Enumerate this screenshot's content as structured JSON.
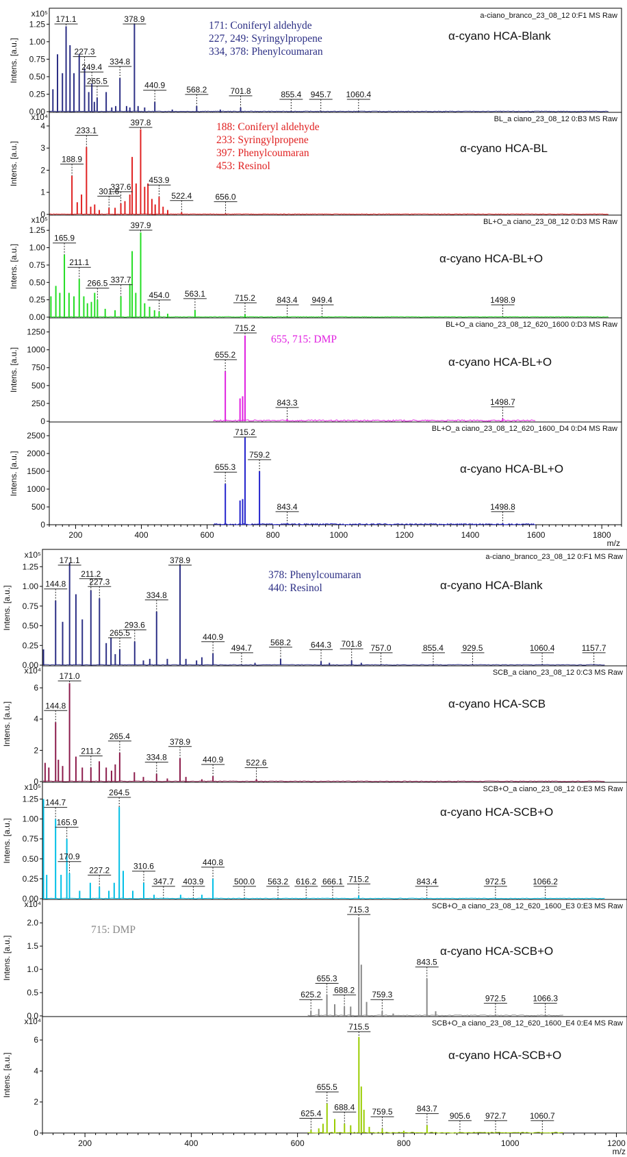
{
  "figure": {
    "x_axis_label": "m/z",
    "y_axis_label": "Intens. [a.u.]",
    "top_x_ticks": [
      "200",
      "400",
      "600",
      "800",
      "1000",
      "1200",
      "1400",
      "1600",
      "1800"
    ],
    "bottom_x_ticks": [
      "200",
      "400",
      "600",
      "800",
      "1000",
      "1200"
    ]
  },
  "chart_data": [
    {
      "type": "line",
      "panel": "top-1",
      "source": "a-ciano_branco_23_08_12 0:F1 MS Raw",
      "sample": "α-cyano HCA-Blank",
      "color": "#2b2e84",
      "y_exponent": "x10⁵",
      "y_scale": 100000,
      "ylim": [
        0,
        1.4
      ],
      "y_ticks": [
        "0.00",
        "0.25",
        "0.50",
        "0.75",
        "1.00",
        "1.25"
      ],
      "xlim": [
        120,
        1860
      ],
      "annotations": [
        "171: Coniferyl aldehyde",
        "227, 249: Syringylpropene",
        "334, 378: Phenylcoumaran"
      ],
      "peaks": [
        {
          "mz": "171.1",
          "y": 1.22
        },
        {
          "mz": "227.3",
          "y": 0.62
        },
        {
          "mz": "249.4",
          "y": 0.4
        },
        {
          "mz": "265.5",
          "y": 0.2
        },
        {
          "mz": "334.8",
          "y": 0.48
        },
        {
          "mz": "378.9",
          "y": 1.26
        },
        {
          "mz": "440.9",
          "y": 0.14
        },
        {
          "mz": "568.2",
          "y": 0.08
        },
        {
          "mz": "701.8",
          "y": 0.06
        },
        {
          "mz": "855.4",
          "y": 0.01
        },
        {
          "mz": "945.7",
          "y": 0.01
        },
        {
          "mz": "1060.4",
          "y": 0.01
        }
      ],
      "minor": [
        [
          131,
          0.32
        ],
        [
          145,
          0.82
        ],
        [
          160,
          0.55
        ],
        [
          183,
          0.95
        ],
        [
          195,
          0.55
        ],
        [
          211,
          0.82
        ],
        [
          240,
          0.28
        ],
        [
          257,
          0.14
        ],
        [
          293,
          0.28
        ],
        [
          310,
          0.06
        ],
        [
          322,
          0.08
        ],
        [
          355,
          0.08
        ],
        [
          365,
          0.06
        ],
        [
          390,
          0.08
        ],
        [
          410,
          0.06
        ],
        [
          494,
          0.03
        ],
        [
          640,
          0.03
        ]
      ]
    },
    {
      "type": "line",
      "panel": "top-2",
      "source": "BL_a ciano_23_08_12 0:B3 MS Raw",
      "sample": "α-cyano HCA-BL",
      "color": "#e02020",
      "y_exponent": "x10⁴",
      "y_scale": 10000,
      "ylim": [
        0,
        4.4
      ],
      "y_ticks": [
        "0",
        "1",
        "2",
        "3",
        "4"
      ],
      "xlim": [
        120,
        1860
      ],
      "annotations": [
        "188: Coniferyl aldehyde",
        "233: Syringylpropene",
        "397: Phenylcoumaran",
        "453: Resinol"
      ],
      "peaks": [
        {
          "mz": "188.9",
          "y": 1.75
        },
        {
          "mz": "233.1",
          "y": 3.05
        },
        {
          "mz": "301.6",
          "y": 0.3
        },
        {
          "mz": "337.6",
          "y": 0.5
        },
        {
          "mz": "397.8",
          "y": 3.85
        },
        {
          "mz": "453.9",
          "y": 0.8
        },
        {
          "mz": "522.4",
          "y": 0.1
        },
        {
          "mz": "656.0",
          "y": 0.05
        }
      ],
      "minor": [
        [
          205,
          0.55
        ],
        [
          218,
          0.9
        ],
        [
          246,
          0.35
        ],
        [
          258,
          0.45
        ],
        [
          272,
          0.2
        ],
        [
          320,
          0.3
        ],
        [
          350,
          0.6
        ],
        [
          365,
          0.9
        ],
        [
          372,
          2.6
        ],
        [
          384,
          1.4
        ],
        [
          410,
          1.25
        ],
        [
          420,
          1.4
        ],
        [
          432,
          0.7
        ],
        [
          442,
          0.45
        ],
        [
          466,
          0.35
        ],
        [
          480,
          0.2
        ]
      ]
    },
    {
      "type": "line",
      "panel": "top-3",
      "source": "BL+O_a ciano_23_08_12 0:D3 MS Raw",
      "sample": "α-cyano HCA-BL+O",
      "color": "#22dd22",
      "y_exponent": "x10⁵",
      "y_scale": 100000,
      "ylim": [
        0,
        1.4
      ],
      "y_ticks": [
        "0.00",
        "0.25",
        "0.50",
        "0.75",
        "1.00",
        "1.25"
      ],
      "xlim": [
        120,
        1860
      ],
      "annotations": [],
      "peaks": [
        {
          "mz": "165.9",
          "y": 0.9
        },
        {
          "mz": "211.1",
          "y": 0.55
        },
        {
          "mz": "266.5",
          "y": 0.25
        },
        {
          "mz": "337.7",
          "y": 0.3
        },
        {
          "mz": "397.9",
          "y": 1.22
        },
        {
          "mz": "454.0",
          "y": 0.08
        },
        {
          "mz": "563.1",
          "y": 0.1
        },
        {
          "mz": "715.2",
          "y": 0.04
        },
        {
          "mz": "843.4",
          "y": 0.01
        },
        {
          "mz": "949.4",
          "y": 0.01
        },
        {
          "mz": "1498.9",
          "y": 0.01
        }
      ],
      "minor": [
        [
          125,
          0.3
        ],
        [
          140,
          0.45
        ],
        [
          152,
          0.35
        ],
        [
          180,
          0.35
        ],
        [
          195,
          0.3
        ],
        [
          225,
          0.3
        ],
        [
          236,
          0.2
        ],
        [
          248,
          0.22
        ],
        [
          258,
          0.35
        ],
        [
          290,
          0.12
        ],
        [
          320,
          0.1
        ],
        [
          365,
          0.48
        ],
        [
          372,
          0.95
        ],
        [
          383,
          0.35
        ],
        [
          410,
          0.2
        ],
        [
          425,
          0.15
        ],
        [
          440,
          0.1
        ],
        [
          480,
          0.05
        ]
      ]
    },
    {
      "type": "line",
      "panel": "top-4",
      "source": "BL+O_a ciano_23_08_12_620_1600 0:D3 MS Raw",
      "sample": "α-cyano HCA-BL+O",
      "color": "#e020e0",
      "y_exponent": "",
      "y_scale": 1,
      "ylim": [
        0,
        1380
      ],
      "y_ticks": [
        "0",
        "250",
        "500",
        "750",
        "1000",
        "1250"
      ],
      "xlim": [
        120,
        1860
      ],
      "annotations": [
        "655, 715:  DMP"
      ],
      "peaks": [
        {
          "mz": "655.2",
          "y": 700
        },
        {
          "mz": "715.2",
          "y": 1200
        },
        {
          "mz": "843.3",
          "y": 30
        },
        {
          "mz": "1498.7",
          "y": 40
        }
      ],
      "minor": [
        [
          700,
          320
        ],
        [
          708,
          350
        ]
      ],
      "range": [
        620,
        1600
      ],
      "noise": 20
    },
    {
      "type": "line",
      "panel": "top-5",
      "source": "BL+O_a ciano_23_08_12_620_1600_D4 0:D4 MS Raw",
      "sample": "α-cyano HCA-BL+O",
      "color": "#2222cc",
      "y_exponent": "",
      "y_scale": 1,
      "ylim": [
        0,
        2750
      ],
      "y_ticks": [
        "0",
        "500",
        "1000",
        "1500",
        "2000",
        "2500"
      ],
      "xlim": [
        120,
        1860
      ],
      "annotations": [],
      "peaks": [
        {
          "mz": "655.3",
          "y": 1150
        },
        {
          "mz": "715.2",
          "y": 2450
        },
        {
          "mz": "759.2",
          "y": 1500
        },
        {
          "mz": "843.4",
          "y": 40
        },
        {
          "mz": "1498.8",
          "y": 40
        }
      ],
      "minor": [
        [
          700,
          680
        ],
        [
          708,
          720
        ]
      ],
      "range": [
        620,
        1600
      ],
      "noise": 30
    },
    {
      "type": "line",
      "panel": "bottom-1",
      "source": "a-ciano_branco_23_08_12 0:F1 MS Raw",
      "sample": "α-cyano HCA-Blank",
      "color": "#2b2e84",
      "y_exponent": "x10⁵",
      "y_scale": 100000,
      "ylim": [
        0,
        1.4
      ],
      "y_ticks": [
        "0.00",
        "0.25",
        "0.50",
        "0.75",
        "1.00",
        "1.25"
      ],
      "xlim": [
        120,
        1220
      ],
      "annotations": [
        "378: Phenylcoumaran",
        "440: Resinol"
      ],
      "peaks": [
        {
          "mz": "144.8",
          "y": 0.82
        },
        {
          "mz": "171.1",
          "y": 1.3
        },
        {
          "mz": "211.2",
          "y": 0.95
        },
        {
          "mz": "227.3",
          "y": 0.85
        },
        {
          "mz": "265.5",
          "y": 0.2
        },
        {
          "mz": "293.6",
          "y": 0.3
        },
        {
          "mz": "334.8",
          "y": 0.68
        },
        {
          "mz": "378.9",
          "y": 1.28
        },
        {
          "mz": "440.9",
          "y": 0.15
        },
        {
          "mz": "494.7",
          "y": 0.01
        },
        {
          "mz": "568.2",
          "y": 0.08
        },
        {
          "mz": "644.3",
          "y": 0.05
        },
        {
          "mz": "701.8",
          "y": 0.06
        },
        {
          "mz": "757.0",
          "y": 0.01
        },
        {
          "mz": "855.4",
          "y": 0.01
        },
        {
          "mz": "929.5",
          "y": 0.01
        },
        {
          "mz": "1060.4",
          "y": 0.01
        },
        {
          "mz": "1157.7",
          "y": 0.01
        }
      ],
      "minor": [
        [
          122,
          0.2
        ],
        [
          158,
          0.55
        ],
        [
          183,
          0.9
        ],
        [
          195,
          0.58
        ],
        [
          240,
          0.28
        ],
        [
          249,
          0.35
        ],
        [
          257,
          0.14
        ],
        [
          310,
          0.06
        ],
        [
          322,
          0.08
        ],
        [
          355,
          0.08
        ],
        [
          390,
          0.08
        ],
        [
          410,
          0.06
        ],
        [
          420,
          0.1
        ],
        [
          520,
          0.03
        ],
        [
          660,
          0.03
        ],
        [
          720,
          0.03
        ]
      ]
    },
    {
      "type": "line",
      "panel": "bottom-2",
      "source": "SCB_a ciano_23_08_12 0:C3 MS Raw",
      "sample": "α-cyano HCA-SCB",
      "color": "#8b1a4a",
      "y_exponent": "x10⁴",
      "y_scale": 10000,
      "ylim": [
        0,
        7.1
      ],
      "y_ticks": [
        "0",
        "2",
        "4",
        "6"
      ],
      "xlim": [
        120,
        1220
      ],
      "annotations": [],
      "peaks": [
        {
          "mz": "144.8",
          "y": 3.8
        },
        {
          "mz": "171.0",
          "y": 6.3
        },
        {
          "mz": "211.2",
          "y": 0.9
        },
        {
          "mz": "265.4",
          "y": 1.85
        },
        {
          "mz": "334.8",
          "y": 0.5
        },
        {
          "mz": "378.9",
          "y": 1.5
        },
        {
          "mz": "440.9",
          "y": 0.35
        },
        {
          "mz": "522.6",
          "y": 0.15
        }
      ],
      "minor": [
        [
          125,
          1.2
        ],
        [
          132,
          0.9
        ],
        [
          150,
          1.4
        ],
        [
          158,
          1.0
        ],
        [
          183,
          1.6
        ],
        [
          195,
          0.9
        ],
        [
          227,
          1.3
        ],
        [
          240,
          0.9
        ],
        [
          250,
          0.7
        ],
        [
          257,
          1.1
        ],
        [
          293,
          0.6
        ],
        [
          310,
          0.3
        ],
        [
          355,
          0.2
        ],
        [
          390,
          0.3
        ],
        [
          420,
          0.15
        ]
      ]
    },
    {
      "type": "line",
      "panel": "bottom-3",
      "source": "SCB+O_a ciano_23_08_12 0:E3 MS Raw",
      "sample": "α-cyano HCA-SCB+O",
      "color": "#00bfe6",
      "y_exponent": "x10⁵",
      "y_scale": 100000,
      "ylim": [
        0,
        1.4
      ],
      "y_ticks": [
        "0.00",
        "0.25",
        "0.50",
        "0.75",
        "1.00",
        "1.25"
      ],
      "xlim": [
        120,
        1220
      ],
      "annotations": [],
      "peaks": [
        {
          "mz": "144.7",
          "y": 1.0
        },
        {
          "mz": "165.9",
          "y": 0.75
        },
        {
          "mz": "170.9",
          "y": 0.32
        },
        {
          "mz": "227.2",
          "y": 0.15
        },
        {
          "mz": "264.5",
          "y": 1.15
        },
        {
          "mz": "310.6",
          "y": 0.2
        },
        {
          "mz": "347.7",
          "y": 0.01
        },
        {
          "mz": "403.9",
          "y": 0.01
        },
        {
          "mz": "440.8",
          "y": 0.25
        },
        {
          "mz": "500.0",
          "y": 0.01
        },
        {
          "mz": "563.2",
          "y": 0.01
        },
        {
          "mz": "616.2",
          "y": 0.01
        },
        {
          "mz": "666.1",
          "y": 0.01
        },
        {
          "mz": "715.2",
          "y": 0.04
        },
        {
          "mz": "843.4",
          "y": 0.01
        },
        {
          "mz": "972.5",
          "y": 0.01
        },
        {
          "mz": "1066.2",
          "y": 0.01
        }
      ],
      "minor": [
        [
          122,
          1.25
        ],
        [
          128,
          0.3
        ],
        [
          155,
          0.3
        ],
        [
          190,
          0.1
        ],
        [
          210,
          0.2
        ],
        [
          245,
          0.1
        ],
        [
          255,
          0.2
        ],
        [
          272,
          0.35
        ],
        [
          290,
          0.1
        ],
        [
          330,
          0.05
        ],
        [
          380,
          0.05
        ],
        [
          420,
          0.05
        ]
      ]
    },
    {
      "type": "line",
      "panel": "bottom-4",
      "source": "SCB+O_a ciano_23_08_12_620_1600_E3 0:E3 MS Raw",
      "sample": "α-cyano HCA-SCB+O",
      "color": "#888888",
      "y_exponent": "x10⁴",
      "y_scale": 10000,
      "ylim": [
        0,
        2.4
      ],
      "y_ticks": [
        "0.0",
        "0.5",
        "1.0",
        "1.5",
        "2.0"
      ],
      "xlim": [
        120,
        1220
      ],
      "annotations": [
        "715:  DMP"
      ],
      "peaks": [
        {
          "mz": "625.2",
          "y": 0.1
        },
        {
          "mz": "655.3",
          "y": 0.45
        },
        {
          "mz": "688.2",
          "y": 0.2
        },
        {
          "mz": "715.3",
          "y": 2.1
        },
        {
          "mz": "759.3",
          "y": 0.1
        },
        {
          "mz": "843.5",
          "y": 0.8
        },
        {
          "mz": "972.5",
          "y": 0.02
        },
        {
          "mz": "1066.3",
          "y": 0.02
        }
      ],
      "minor": [
        [
          640,
          0.15
        ],
        [
          670,
          0.25
        ],
        [
          700,
          0.2
        ],
        [
          720,
          1.1
        ],
        [
          730,
          0.3
        ],
        [
          780,
          0.05
        ],
        [
          860,
          0.1
        ]
      ],
      "range": [
        620,
        1100
      ],
      "noise": 0.02
    },
    {
      "type": "line",
      "panel": "bottom-5",
      "source": "SCB+O_a ciano_23_08_12_620_1600_E4 0:E4 MS Raw",
      "sample": "α-cyano HCA-SCB+O",
      "color": "#99cc00",
      "y_exponent": "x10⁴",
      "y_scale": 10000,
      "ylim": [
        0,
        7.2
      ],
      "y_ticks": [
        "0",
        "2",
        "4",
        "6"
      ],
      "xlim": [
        120,
        1220
      ],
      "annotations": [],
      "peaks": [
        {
          "mz": "625.4",
          "y": 0.2
        },
        {
          "mz": "655.5",
          "y": 1.9
        },
        {
          "mz": "688.4",
          "y": 0.6
        },
        {
          "mz": "715.5",
          "y": 6.2
        },
        {
          "mz": "759.5",
          "y": 0.3
        },
        {
          "mz": "843.7",
          "y": 0.5
        },
        {
          "mz": "905.6",
          "y": 0.05
        },
        {
          "mz": "972.7",
          "y": 0.05
        },
        {
          "mz": "1060.7",
          "y": 0.05
        }
      ],
      "minor": [
        [
          640,
          0.3
        ],
        [
          648,
          0.6
        ],
        [
          670,
          0.9
        ],
        [
          700,
          0.5
        ],
        [
          720,
          3.0
        ],
        [
          725,
          1.5
        ],
        [
          735,
          0.4
        ],
        [
          800,
          0.15
        ]
      ],
      "range": [
        620,
        1100
      ],
      "noise": 0.05
    }
  ]
}
